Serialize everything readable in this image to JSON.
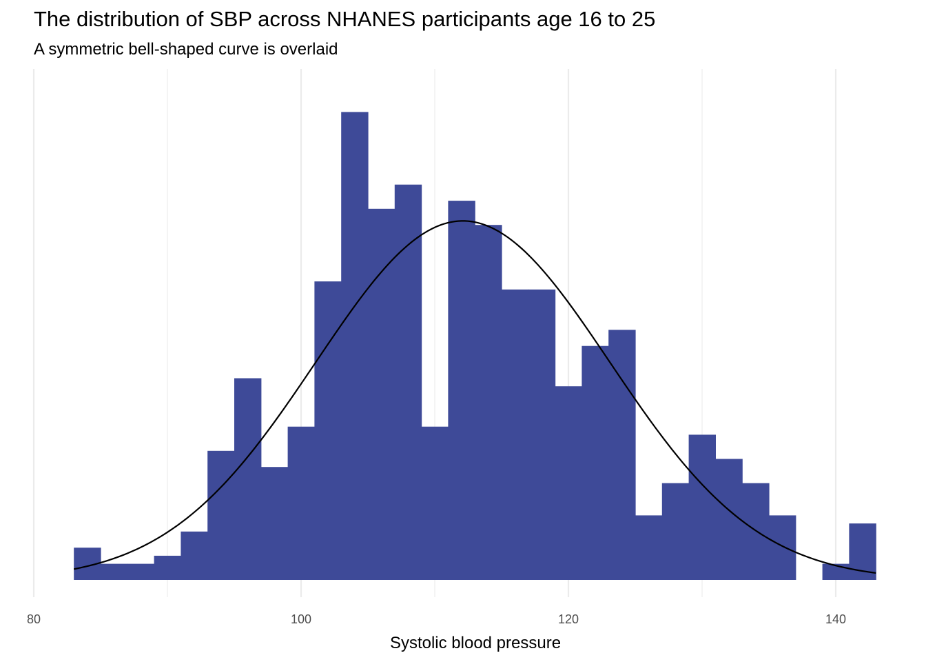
{
  "chart_data": {
    "type": "bar",
    "title": "The distribution of SBP across NHANES participants age 16 to 25",
    "subtitle": "A symmetric bell-shaped curve is overlaid",
    "xlabel": "Systolic blood pressure",
    "ylabel": "",
    "xlim": [
      80,
      143
    ],
    "x_ticks": [
      80,
      100,
      120,
      140
    ],
    "y_axis_shown": false,
    "grid": "vertical",
    "bin_width": 2,
    "bins": [
      {
        "start": 83,
        "end": 85,
        "count": 4
      },
      {
        "start": 85,
        "end": 87,
        "count": 2
      },
      {
        "start": 87,
        "end": 89,
        "count": 2
      },
      {
        "start": 89,
        "end": 91,
        "count": 3
      },
      {
        "start": 91,
        "end": 93,
        "count": 6
      },
      {
        "start": 93,
        "end": 95,
        "count": 16
      },
      {
        "start": 95,
        "end": 97,
        "count": 25
      },
      {
        "start": 97,
        "end": 99,
        "count": 14
      },
      {
        "start": 99,
        "end": 101,
        "count": 19
      },
      {
        "start": 101,
        "end": 103,
        "count": 37
      },
      {
        "start": 103,
        "end": 105,
        "count": 58
      },
      {
        "start": 105,
        "end": 107,
        "count": 46
      },
      {
        "start": 107,
        "end": 109,
        "count": 49
      },
      {
        "start": 109,
        "end": 111,
        "count": 19
      },
      {
        "start": 111,
        "end": 113,
        "count": 47
      },
      {
        "start": 113,
        "end": 115,
        "count": 44
      },
      {
        "start": 115,
        "end": 117,
        "count": 36
      },
      {
        "start": 117,
        "end": 119,
        "count": 36
      },
      {
        "start": 119,
        "end": 121,
        "count": 24
      },
      {
        "start": 121,
        "end": 123,
        "count": 29
      },
      {
        "start": 123,
        "end": 125,
        "count": 31
      },
      {
        "start": 125,
        "end": 127,
        "count": 8
      },
      {
        "start": 127,
        "end": 129,
        "count": 12
      },
      {
        "start": 129,
        "end": 131,
        "count": 18
      },
      {
        "start": 131,
        "end": 133,
        "count": 15
      },
      {
        "start": 133,
        "end": 135,
        "count": 12
      },
      {
        "start": 135,
        "end": 137,
        "count": 8
      },
      {
        "start": 137,
        "end": 139,
        "count": 0
      },
      {
        "start": 139,
        "end": 141,
        "count": 2
      },
      {
        "start": 141,
        "end": 143,
        "count": 7
      }
    ],
    "curve": {
      "type": "normal",
      "mean": 112.1,
      "sd": 11.0,
      "peak_count": 44.5
    },
    "y_max": 60,
    "bar_color": "#3e4a98",
    "curve_color": "#000000",
    "grid_color": "#ebebeb"
  }
}
